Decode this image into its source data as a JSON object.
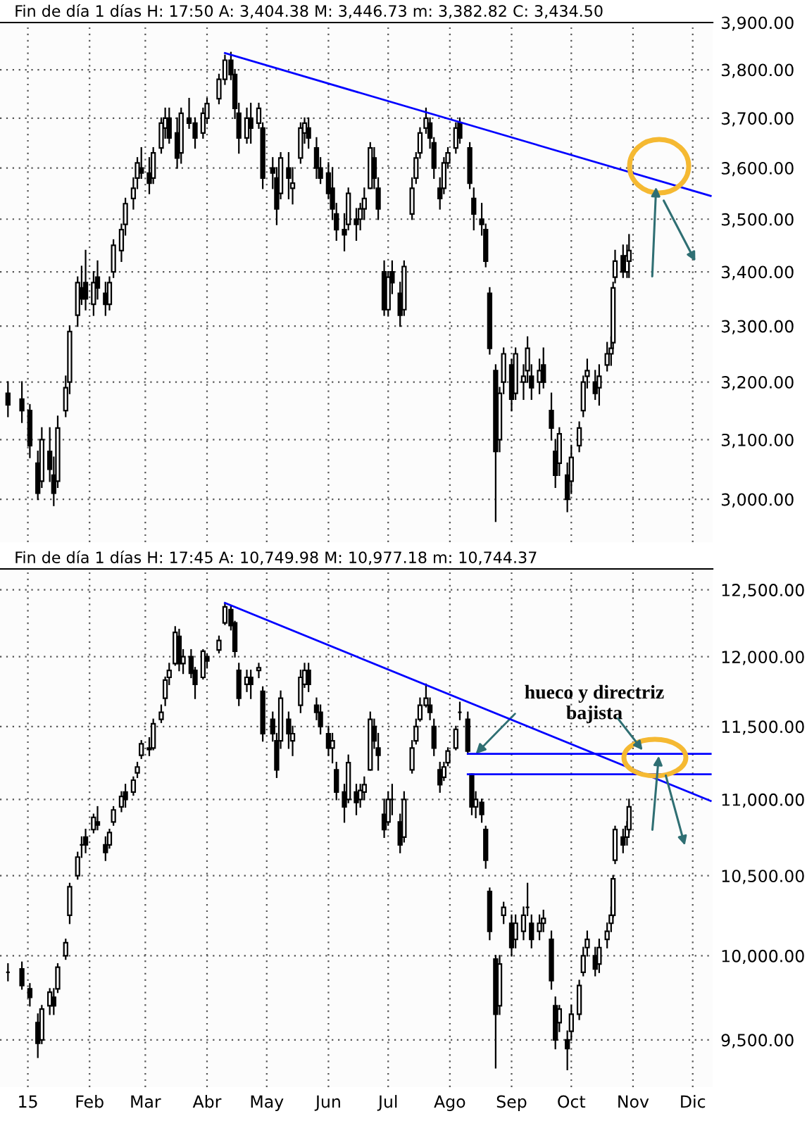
{
  "chart_data": [
    {
      "type": "candlestick",
      "title": "Fin de día 1 días H: 17:50 A: 3,404.38 M: 3,446.73 m: 3,382.82 C: 3,434.50",
      "x": [
        "2014-12-22",
        "2014-12-29",
        "2015-01-02",
        "2015-01-06",
        "2015-01-08",
        "2015-01-12",
        "2015-01-14",
        "2015-01-16",
        "2015-01-20",
        "2015-01-22",
        "2015-01-26",
        "2015-01-28",
        "2015-01-30",
        "2015-02-03",
        "2015-02-05",
        "2015-02-09",
        "2015-02-11",
        "2015-02-13",
        "2015-02-17",
        "2015-02-19",
        "2015-02-23",
        "2015-02-25",
        "2015-02-27",
        "2015-03-03",
        "2015-03-05",
        "2015-03-09",
        "2015-03-11",
        "2015-03-13",
        "2015-03-17",
        "2015-03-19",
        "2015-03-23",
        "2015-03-26",
        "2015-03-30",
        "2015-04-01",
        "2015-04-07",
        "2015-04-10",
        "2015-04-13",
        "2015-04-15",
        "2015-04-17",
        "2015-04-21",
        "2015-04-23",
        "2015-04-27",
        "2015-04-29",
        "2015-05-04",
        "2015-05-06",
        "2015-05-08",
        "2015-05-12",
        "2015-05-14",
        "2015-05-18",
        "2015-05-20",
        "2015-05-22",
        "2015-05-26",
        "2015-05-28",
        "2015-06-01",
        "2015-06-03",
        "2015-06-05",
        "2015-06-09",
        "2015-06-11",
        "2015-06-15",
        "2015-06-17",
        "2015-06-19",
        "2015-06-22",
        "2015-06-24",
        "2015-06-26",
        "2015-06-29",
        "2015-07-01",
        "2015-07-03",
        "2015-07-07",
        "2015-07-09",
        "2015-07-13",
        "2015-07-15",
        "2015-07-17",
        "2015-07-20",
        "2015-07-22",
        "2015-07-24",
        "2015-07-27",
        "2015-07-29",
        "2015-07-31",
        "2015-08-04",
        "2015-08-06",
        "2015-08-11",
        "2015-08-13",
        "2015-08-17",
        "2015-08-19",
        "2015-08-21",
        "2015-08-24",
        "2015-08-26",
        "2015-08-28",
        "2015-09-01",
        "2015-09-03",
        "2015-09-07",
        "2015-09-09",
        "2015-09-11",
        "2015-09-15",
        "2015-09-17",
        "2015-09-21",
        "2015-09-23",
        "2015-09-25",
        "2015-09-29",
        "2015-10-01",
        "2015-10-05",
        "2015-10-07",
        "2015-10-09",
        "2015-10-13",
        "2015-10-15",
        "2015-10-19",
        "2015-10-21",
        "2015-10-22",
        "2015-10-23",
        "2015-10-27",
        "2015-10-29",
        "2015-10-30"
      ],
      "ohlc": [
        [
          3180,
          3200,
          3140,
          3160
        ],
        [
          3170,
          3200,
          3130,
          3150
        ],
        [
          3150,
          3160,
          3070,
          3090
        ],
        [
          3060,
          3080,
          3000,
          3010
        ],
        [
          3030,
          3120,
          3020,
          3100
        ],
        [
          3080,
          3120,
          3030,
          3050
        ],
        [
          3040,
          3070,
          2990,
          3010
        ],
        [
          3030,
          3140,
          3020,
          3120
        ],
        [
          3150,
          3210,
          3140,
          3190
        ],
        [
          3200,
          3300,
          3180,
          3290
        ],
        [
          3320,
          3390,
          3300,
          3380
        ],
        [
          3370,
          3410,
          3340,
          3350
        ],
        [
          3380,
          3440,
          3330,
          3350
        ],
        [
          3340,
          3400,
          3320,
          3380
        ],
        [
          3390,
          3420,
          3350,
          3370
        ],
        [
          3360,
          3380,
          3320,
          3340
        ],
        [
          3340,
          3390,
          3330,
          3380
        ],
        [
          3400,
          3460,
          3390,
          3450
        ],
        [
          3440,
          3490,
          3420,
          3480
        ],
        [
          3490,
          3540,
          3470,
          3530
        ],
        [
          3540,
          3580,
          3520,
          3560
        ],
        [
          3580,
          3620,
          3560,
          3610
        ],
        [
          3600,
          3640,
          3580,
          3590
        ],
        [
          3590,
          3620,
          3550,
          3570
        ],
        [
          3580,
          3640,
          3570,
          3630
        ],
        [
          3640,
          3700,
          3630,
          3690
        ],
        [
          3680,
          3720,
          3660,
          3700
        ],
        [
          3700,
          3720,
          3650,
          3660
        ],
        [
          3670,
          3700,
          3600,
          3620
        ],
        [
          3630,
          3720,
          3610,
          3710
        ],
        [
          3700,
          3740,
          3680,
          3690
        ],
        [
          3690,
          3700,
          3640,
          3660
        ],
        [
          3670,
          3720,
          3660,
          3710
        ],
        [
          3700,
          3740,
          3690,
          3730
        ],
        [
          3740,
          3790,
          3730,
          3780
        ],
        [
          3780,
          3830,
          3770,
          3820
        ],
        [
          3820,
          3836,
          3780,
          3790
        ],
        [
          3790,
          3800,
          3700,
          3720
        ],
        [
          3710,
          3730,
          3630,
          3660
        ],
        [
          3660,
          3720,
          3650,
          3700
        ],
        [
          3700,
          3730,
          3650,
          3680
        ],
        [
          3690,
          3730,
          3680,
          3720
        ],
        [
          3680,
          3690,
          3560,
          3580
        ],
        [
          3600,
          3620,
          3560,
          3590
        ],
        [
          3580,
          3600,
          3490,
          3520
        ],
        [
          3550,
          3630,
          3540,
          3620
        ],
        [
          3600,
          3630,
          3540,
          3580
        ],
        [
          3560,
          3600,
          3530,
          3570
        ],
        [
          3620,
          3690,
          3610,
          3680
        ],
        [
          3670,
          3700,
          3650,
          3690
        ],
        [
          3680,
          3700,
          3640,
          3660
        ],
        [
          3640,
          3660,
          3580,
          3600
        ],
        [
          3600,
          3620,
          3570,
          3580
        ],
        [
          3590,
          3610,
          3540,
          3550
        ],
        [
          3560,
          3600,
          3500,
          3520
        ],
        [
          3510,
          3530,
          3460,
          3480
        ],
        [
          3480,
          3510,
          3440,
          3470
        ],
        [
          3490,
          3560,
          3480,
          3550
        ],
        [
          3500,
          3520,
          3460,
          3490
        ],
        [
          3500,
          3530,
          3480,
          3520
        ],
        [
          3520,
          3560,
          3500,
          3540
        ],
        [
          3560,
          3650,
          3560,
          3640
        ],
        [
          3620,
          3640,
          3560,
          3580
        ],
        [
          3560,
          3580,
          3500,
          3520
        ],
        [
          3400,
          3420,
          3320,
          3330
        ],
        [
          3330,
          3400,
          3320,
          3390
        ],
        [
          3400,
          3420,
          3360,
          3380
        ],
        [
          3360,
          3380,
          3300,
          3320
        ],
        [
          3330,
          3420,
          3320,
          3410
        ],
        [
          3510,
          3580,
          3500,
          3560
        ],
        [
          3580,
          3630,
          3570,
          3620
        ],
        [
          3630,
          3680,
          3620,
          3670
        ],
        [
          3680,
          3720,
          3670,
          3700
        ],
        [
          3690,
          3700,
          3640,
          3660
        ],
        [
          3650,
          3660,
          3580,
          3600
        ],
        [
          3560,
          3580,
          3520,
          3540
        ],
        [
          3560,
          3620,
          3550,
          3610
        ],
        [
          3610,
          3640,
          3600,
          3630
        ],
        [
          3640,
          3690,
          3630,
          3680
        ],
        [
          3690,
          3700,
          3650,
          3660
        ],
        [
          3640,
          3650,
          3560,
          3570
        ],
        [
          3540,
          3560,
          3480,
          3510
        ],
        [
          3500,
          3530,
          3470,
          3490
        ],
        [
          3480,
          3490,
          3410,
          3420
        ],
        [
          3360,
          3370,
          3250,
          3260
        ],
        [
          3220,
          3230,
          2964,
          3080
        ],
        [
          3100,
          3190,
          3080,
          3180
        ],
        [
          3200,
          3260,
          3180,
          3250
        ],
        [
          3230,
          3240,
          3150,
          3170
        ],
        [
          3180,
          3260,
          3170,
          3250
        ],
        [
          3200,
          3230,
          3170,
          3210
        ],
        [
          3220,
          3280,
          3200,
          3260
        ],
        [
          3210,
          3230,
          3170,
          3190
        ],
        [
          3200,
          3240,
          3180,
          3220
        ],
        [
          3230,
          3260,
          3190,
          3200
        ],
        [
          3150,
          3180,
          3100,
          3120
        ],
        [
          3080,
          3100,
          3020,
          3040
        ],
        [
          3060,
          3120,
          3040,
          3110
        ],
        [
          3040,
          3060,
          2980,
          3000
        ],
        [
          3030,
          3090,
          3010,
          3070
        ],
        [
          3090,
          3130,
          3080,
          3120
        ],
        [
          3150,
          3210,
          3140,
          3200
        ],
        [
          3210,
          3240,
          3190,
          3220
        ],
        [
          3200,
          3220,
          3170,
          3180
        ],
        [
          3190,
          3230,
          3160,
          3210
        ],
        [
          3230,
          3270,
          3220,
          3250
        ],
        [
          3250,
          3280,
          3230,
          3260
        ],
        [
          3270,
          3380,
          3260,
          3370
        ],
        [
          3390,
          3440,
          3380,
          3420
        ],
        [
          3430,
          3450,
          3390,
          3400
        ],
        [
          3400,
          3450,
          3390,
          3430
        ],
        [
          3420,
          3470,
          3390,
          3440
        ]
      ],
      "series": [
        {
          "type": "line",
          "x": [
            "2015-04-10",
            "2015-12-10"
          ],
          "values": [
            3835,
            3545
          ],
          "color": "#0000ff"
        }
      ],
      "log": "y",
      "grid": true,
      "tick_labels": "y",
      "xlim": [
        "2014-12-18",
        "2015-12-11"
      ],
      "xticks": [
        {
          "value": "2015-01-01",
          "label": null
        },
        {
          "value": "2015-02-01",
          "label": null
        },
        {
          "value": "2015-03-01",
          "label": null
        },
        {
          "value": "2015-04-01",
          "label": null
        },
        {
          "value": "2015-05-01",
          "label": null
        },
        {
          "value": "2015-06-01",
          "label": null
        },
        {
          "value": "2015-07-01",
          "label": null
        },
        {
          "value": "2015-08-01",
          "label": null
        },
        {
          "value": "2015-09-01",
          "label": null
        },
        {
          "value": "2015-10-01",
          "label": null
        },
        {
          "value": "2015-11-01",
          "label": null
        },
        {
          "value": "2015-12-01",
          "label": null
        }
      ],
      "ylim": [
        2930,
        3900
      ],
      "yticks": [
        {
          "value": 3000,
          "label": "3,000.00"
        },
        {
          "value": 3100,
          "label": "3,100.00"
        },
        {
          "value": 3200,
          "label": "3,200.00"
        },
        {
          "value": 3300,
          "label": "3,300.00"
        },
        {
          "value": 3400,
          "label": "3,400.00"
        },
        {
          "value": 3500,
          "label": "3,500.00"
        },
        {
          "value": 3600,
          "label": "3,600.00"
        },
        {
          "value": 3700,
          "label": "3,700.00"
        },
        {
          "value": 3800,
          "label": "3,800.00"
        },
        {
          "value": 3900,
          "label": "3,900.00"
        }
      ]
    },
    {
      "type": "candlestick",
      "title": "Fin de día 1 días H: 17:45 A: 10,749.98 M: 10,977.18 m: 10,744.37",
      "x": [
        "2014-12-22",
        "2014-12-29",
        "2015-01-02",
        "2015-01-06",
        "2015-01-08",
        "2015-01-12",
        "2015-01-14",
        "2015-01-16",
        "2015-01-20",
        "2015-01-22",
        "2015-01-26",
        "2015-01-28",
        "2015-01-30",
        "2015-02-03",
        "2015-02-05",
        "2015-02-09",
        "2015-02-11",
        "2015-02-13",
        "2015-02-17",
        "2015-02-19",
        "2015-02-23",
        "2015-02-25",
        "2015-02-27",
        "2015-03-03",
        "2015-03-05",
        "2015-03-09",
        "2015-03-11",
        "2015-03-13",
        "2015-03-16",
        "2015-03-18",
        "2015-03-20",
        "2015-03-24",
        "2015-03-26",
        "2015-03-30",
        "2015-04-01",
        "2015-04-07",
        "2015-04-10",
        "2015-04-13",
        "2015-04-15",
        "2015-04-17",
        "2015-04-21",
        "2015-04-23",
        "2015-04-27",
        "2015-04-29",
        "2015-05-04",
        "2015-05-06",
        "2015-05-08",
        "2015-05-12",
        "2015-05-14",
        "2015-05-18",
        "2015-05-20",
        "2015-05-22",
        "2015-05-26",
        "2015-05-28",
        "2015-06-01",
        "2015-06-03",
        "2015-06-05",
        "2015-06-09",
        "2015-06-11",
        "2015-06-15",
        "2015-06-17",
        "2015-06-19",
        "2015-06-22",
        "2015-06-24",
        "2015-06-26",
        "2015-06-29",
        "2015-07-01",
        "2015-07-03",
        "2015-07-07",
        "2015-07-09",
        "2015-07-13",
        "2015-07-15",
        "2015-07-17",
        "2015-07-20",
        "2015-07-22",
        "2015-07-24",
        "2015-07-27",
        "2015-07-29",
        "2015-07-31",
        "2015-08-04",
        "2015-08-06",
        "2015-08-10",
        "2015-08-12",
        "2015-08-14",
        "2015-08-17",
        "2015-08-19",
        "2015-08-21",
        "2015-08-24",
        "2015-08-26",
        "2015-08-28",
        "2015-09-01",
        "2015-09-03",
        "2015-09-07",
        "2015-09-09",
        "2015-09-11",
        "2015-09-15",
        "2015-09-17",
        "2015-09-21",
        "2015-09-23",
        "2015-09-25",
        "2015-09-29",
        "2015-10-01",
        "2015-10-05",
        "2015-10-07",
        "2015-10-09",
        "2015-10-13",
        "2015-10-15",
        "2015-10-19",
        "2015-10-21",
        "2015-10-22",
        "2015-10-23",
        "2015-10-27",
        "2015-10-29",
        "2015-10-30"
      ],
      "ohlc": [
        [
          9900,
          9950,
          9850,
          9900
        ],
        [
          9920,
          9960,
          9800,
          9820
        ],
        [
          9800,
          9830,
          9700,
          9750
        ],
        [
          9600,
          9650,
          9400,
          9480
        ],
        [
          9500,
          9700,
          9480,
          9680
        ],
        [
          9700,
          9800,
          9650,
          9780
        ],
        [
          9750,
          9800,
          9650,
          9700
        ],
        [
          9800,
          9950,
          9780,
          9930
        ],
        [
          10000,
          10100,
          9980,
          10080
        ],
        [
          10250,
          10450,
          10200,
          10430
        ],
        [
          10500,
          10650,
          10480,
          10620
        ],
        [
          10700,
          10750,
          10620,
          10700
        ],
        [
          10750,
          10800,
          10650,
          10700
        ],
        [
          10800,
          10900,
          10780,
          10880
        ],
        [
          10850,
          10950,
          10800,
          10830
        ],
        [
          10700,
          10750,
          10600,
          10650
        ],
        [
          10700,
          10800,
          10680,
          10780
        ],
        [
          10850,
          10950,
          10830,
          10930
        ],
        [
          10950,
          11050,
          10920,
          11020
        ],
        [
          11050,
          11100,
          10950,
          11000
        ],
        [
          11050,
          11150,
          11030,
          11130
        ],
        [
          11180,
          11250,
          11150,
          11220
        ],
        [
          11300,
          11400,
          11280,
          11380
        ],
        [
          11350,
          11420,
          11300,
          11340
        ],
        [
          11350,
          11550,
          11340,
          11520
        ],
        [
          11550,
          11650,
          11530,
          11600
        ],
        [
          11700,
          11850,
          11650,
          11830
        ],
        [
          11850,
          11950,
          11800,
          11900
        ],
        [
          11950,
          12220,
          11940,
          12180
        ],
        [
          12150,
          12200,
          11900,
          11950
        ],
        [
          11950,
          12050,
          11880,
          12000
        ],
        [
          12000,
          12050,
          11850,
          11880
        ],
        [
          11900,
          11920,
          11700,
          11800
        ],
        [
          11850,
          12050,
          11840,
          12040
        ],
        [
          12000,
          12020,
          11920,
          11970
        ],
        [
          12050,
          12150,
          12030,
          12120
        ],
        [
          12250,
          12390,
          12240,
          12370
        ],
        [
          12350,
          12375,
          12200,
          12230
        ],
        [
          12250,
          12260,
          12000,
          12040
        ],
        [
          11900,
          11950,
          11650,
          11700
        ],
        [
          11800,
          11900,
          11750,
          11850
        ],
        [
          11850,
          11900,
          11700,
          11800
        ],
        [
          11900,
          11950,
          11850,
          11920
        ],
        [
          11750,
          11780,
          11400,
          11450
        ],
        [
          11550,
          11600,
          11400,
          11450
        ],
        [
          11400,
          11450,
          11150,
          11200
        ],
        [
          11400,
          11750,
          11350,
          11700
        ],
        [
          11550,
          11600,
          11350,
          11450
        ],
        [
          11400,
          11500,
          11300,
          11450
        ],
        [
          11650,
          11900,
          11600,
          11850
        ],
        [
          11800,
          11950,
          11780,
          11900
        ],
        [
          11900,
          11950,
          11750,
          11800
        ],
        [
          11650,
          11700,
          11550,
          11600
        ],
        [
          11600,
          11650,
          11450,
          11500
        ],
        [
          11450,
          11500,
          11300,
          11350
        ],
        [
          11350,
          11450,
          11250,
          11400
        ],
        [
          11200,
          11250,
          11000,
          11050
        ],
        [
          11050,
          11100,
          10850,
          10950
        ],
        [
          11000,
          11300,
          10980,
          11250
        ],
        [
          11050,
          11100,
          10900,
          10980
        ],
        [
          11000,
          11100,
          10950,
          11060
        ],
        [
          11050,
          11150,
          11000,
          11100
        ],
        [
          11200,
          11600,
          11200,
          11550
        ],
        [
          11500,
          11550,
          11350,
          11400
        ],
        [
          11350,
          11450,
          11200,
          11300
        ],
        [
          10900,
          11000,
          10750,
          10800
        ],
        [
          10850,
          11050,
          10830,
          11000
        ],
        [
          11000,
          11100,
          10900,
          11000
        ],
        [
          10850,
          10900,
          10650,
          10700
        ],
        [
          10750,
          11050,
          10720,
          11000
        ],
        [
          11200,
          11400,
          11180,
          11350
        ],
        [
          11400,
          11550,
          11380,
          11500
        ],
        [
          11550,
          11700,
          11540,
          11650
        ],
        [
          11650,
          11800,
          11640,
          11700
        ],
        [
          11650,
          11700,
          11550,
          11600
        ],
        [
          11500,
          11550,
          11300,
          11350
        ],
        [
          11200,
          11250,
          11050,
          11100
        ],
        [
          11150,
          11250,
          11130,
          11220
        ],
        [
          11250,
          11350,
          11230,
          11330
        ],
        [
          11350,
          11500,
          11340,
          11480
        ],
        [
          11600,
          11670,
          11550,
          11600
        ],
        [
          11550,
          11600,
          11310,
          11330
        ],
        [
          11170,
          11170,
          10900,
          10950
        ],
        [
          10950,
          11050,
          10880,
          11000
        ],
        [
          10980,
          11000,
          10850,
          10900
        ],
        [
          10800,
          10820,
          10550,
          10600
        ],
        [
          10400,
          10420,
          10100,
          10150
        ],
        [
          9980,
          10000,
          9340,
          9650
        ],
        [
          9700,
          10000,
          9650,
          9950
        ],
        [
          10250,
          10330,
          10200,
          10300
        ],
        [
          10200,
          10250,
          10000,
          10050
        ],
        [
          10100,
          10250,
          10050,
          10200
        ],
        [
          10150,
          10300,
          10100,
          10250
        ],
        [
          10300,
          10450,
          10250,
          10300
        ],
        [
          10200,
          10250,
          10050,
          10100
        ],
        [
          10150,
          10250,
          10100,
          10200
        ],
        [
          10200,
          10280,
          10150,
          10230
        ],
        [
          10100,
          10150,
          9800,
          9850
        ],
        [
          9700,
          9750,
          9450,
          9500
        ],
        [
          9600,
          9700,
          9550,
          9680
        ],
        [
          9500,
          9550,
          9330,
          9450
        ],
        [
          9550,
          9700,
          9500,
          9650
        ],
        [
          9650,
          9850,
          9620,
          9820
        ],
        [
          9900,
          10050,
          9880,
          10000
        ],
        [
          10050,
          10150,
          10000,
          10100
        ],
        [
          10000,
          10050,
          9880,
          9920
        ],
        [
          9950,
          10100,
          9900,
          10050
        ],
        [
          10100,
          10200,
          10050,
          10150
        ],
        [
          10200,
          10300,
          10150,
          10250
        ],
        [
          10250,
          10500,
          10240,
          10480
        ],
        [
          10600,
          10820,
          10580,
          10800
        ],
        [
          10750,
          10800,
          10650,
          10700
        ],
        [
          10750,
          10850,
          10700,
          10820
        ],
        [
          10800,
          11000,
          10780,
          10950
        ]
      ],
      "series": [
        {
          "type": "line",
          "x": [
            "2015-04-10",
            "2015-12-10"
          ],
          "values": [
            12400,
            10990
          ],
          "color": "#0000ff"
        },
        {
          "type": "line",
          "x": [
            "2015-08-10",
            "2015-12-10"
          ],
          "values": [
            11310,
            11310
          ],
          "color": "#0000ff"
        },
        {
          "type": "line",
          "x": [
            "2015-08-10",
            "2015-12-10"
          ],
          "values": [
            11170,
            11170
          ],
          "color": "#0000ff"
        }
      ],
      "annotations": [
        {
          "text": "hueco y directriz\nbajista",
          "x": "2015-08-14",
          "y": 11310
        }
      ],
      "log": "y",
      "grid": true,
      "xlim": [
        "2014-12-18",
        "2015-12-11"
      ],
      "xticks": [
        {
          "value": "2015-01-01",
          "label": "15"
        },
        {
          "value": "2015-02-01",
          "label": "Feb"
        },
        {
          "value": "2015-03-01",
          "label": "Mar"
        },
        {
          "value": "2015-04-01",
          "label": "Abr"
        },
        {
          "value": "2015-05-01",
          "label": "May"
        },
        {
          "value": "2015-06-01",
          "label": "Jun"
        },
        {
          "value": "2015-07-01",
          "label": "Jul"
        },
        {
          "value": "2015-08-01",
          "label": "Ago"
        },
        {
          "value": "2015-09-01",
          "label": "Sep"
        },
        {
          "value": "2015-10-01",
          "label": "Oct"
        },
        {
          "value": "2015-11-01",
          "label": "Nov"
        },
        {
          "value": "2015-12-01",
          "label": "Dic"
        }
      ],
      "ylim": [
        9230,
        12660
      ],
      "yticks": [
        {
          "value": 9500,
          "label": "9,500.00"
        },
        {
          "value": 10000,
          "label": "10,000.00"
        },
        {
          "value": 10500,
          "label": "10,500.00"
        },
        {
          "value": 11000,
          "label": "11,000.00"
        },
        {
          "value": 11500,
          "label": "11,500.00"
        },
        {
          "value": 12000,
          "label": "12,000.00"
        },
        {
          "value": 12500,
          "label": "12,500.00"
        }
      ]
    }
  ]
}
